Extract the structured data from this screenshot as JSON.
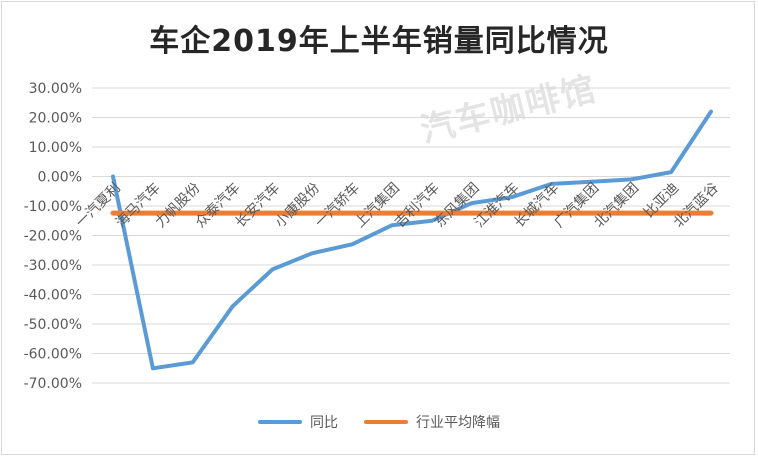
{
  "chart_data": {
    "type": "line",
    "title": "车企2019年上半年销量同比情况",
    "categories": [
      "一汽夏利",
      "海马汽车",
      "力帆股份",
      "众泰汽车",
      "长安汽车",
      "小康股份",
      "一汽轿车",
      "上汽集团",
      "吉利汽车",
      "东风集团",
      "江淮汽车",
      "长城汽车",
      "广汽集团",
      "北汽集团",
      "比亚迪",
      "北汽蓝谷"
    ],
    "y_ticks": [
      "30.00%",
      "20.00%",
      "10.00%",
      "0.00%",
      "-10.00%",
      "-20.00%",
      "-30.00%",
      "-40.00%",
      "-50.00%",
      "-60.00%",
      "-70.00%"
    ],
    "ylim": [
      -70,
      30
    ],
    "ylabel_format": "percent",
    "grid": true,
    "legend_position": "bottom",
    "series": [
      {
        "name": "同比",
        "color": "#5b9bd5",
        "values": [
          0.0,
          -65.0,
          -63.0,
          -44.0,
          -31.5,
          -26.0,
          -23.0,
          -16.5,
          -15.0,
          -9.0,
          -7.0,
          -2.5,
          -1.8,
          -1.0,
          1.5,
          22.0
        ]
      },
      {
        "name": "行业平均降幅",
        "color": "#ed7d31",
        "values": [
          -12.4,
          -12.4,
          -12.4,
          -12.4,
          -12.4,
          -12.4,
          -12.4,
          -12.4,
          -12.4,
          -12.4,
          -12.4,
          -12.4,
          -12.4,
          -12.4,
          -12.4,
          -12.4
        ]
      }
    ]
  },
  "watermark": "汽车咖啡馆"
}
